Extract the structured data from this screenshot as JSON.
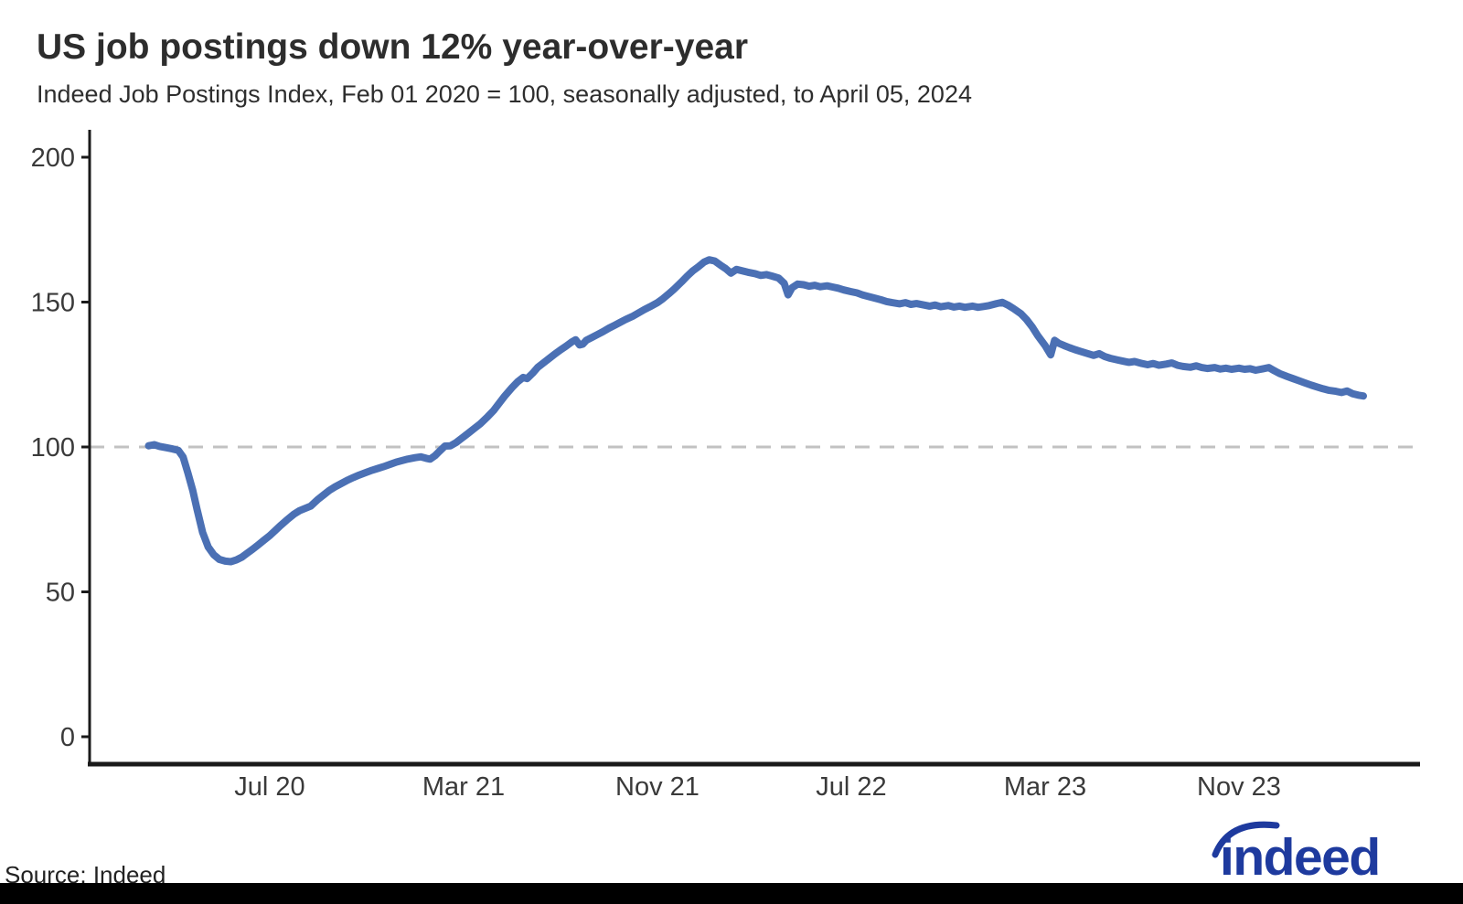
{
  "header": {
    "title": "US job postings down 12% year-over-year",
    "subtitle": "Indeed Job Postings Index, Feb 01 2020 = 100, seasonally adjusted, to April 05, 2024"
  },
  "footer": {
    "source_label": "Source: Indeed",
    "logo_text": "indeed"
  },
  "colors": {
    "line": "#4B70B4",
    "baseline_dash": "#c2c2c2",
    "axis": "#1a1a1a",
    "tick_text": "#3a3a3a",
    "logo_blue": "#1E3A9E",
    "footer_bar": "#000000"
  },
  "chart_data": {
    "type": "line",
    "title": "US job postings down 12% year-over-year",
    "subtitle": "Indeed Job Postings Index, Feb 01 2020 = 100, seasonally adjusted, to April 05, 2024",
    "xlabel": "",
    "ylabel": "",
    "ylim": [
      0,
      200
    ],
    "yticks": [
      0,
      50,
      100,
      150,
      200
    ],
    "baseline_value": 100,
    "grid": false,
    "legend": "none",
    "xticks": [
      {
        "label": "Jul 20",
        "months_from_feb2020": 5
      },
      {
        "label": "Mar 21",
        "months_from_feb2020": 13
      },
      {
        "label": "Nov 21",
        "months_from_feb2020": 21
      },
      {
        "label": "Jul 22",
        "months_from_feb2020": 29
      },
      {
        "label": "Mar 23",
        "months_from_feb2020": 37
      },
      {
        "label": "Nov 23",
        "months_from_feb2020": 45
      }
    ],
    "x_range": [
      "2020-02-01",
      "2024-04-05"
    ],
    "series": [
      {
        "name": "Indeed Job Postings Index (US, seasonally adjusted)",
        "x": [
          "2020-02-01",
          "2020-02-08",
          "2020-02-15",
          "2020-02-22",
          "2020-03-01",
          "2020-03-08",
          "2020-03-14",
          "2020-03-20",
          "2020-03-26",
          "2020-04-01",
          "2020-04-08",
          "2020-04-15",
          "2020-04-22",
          "2020-04-29",
          "2020-05-06",
          "2020-05-13",
          "2020-05-20",
          "2020-05-27",
          "2020-06-03",
          "2020-06-10",
          "2020-06-17",
          "2020-06-24",
          "2020-07-01",
          "2020-07-08",
          "2020-07-15",
          "2020-07-22",
          "2020-08-01",
          "2020-08-08",
          "2020-08-15",
          "2020-08-22",
          "2020-09-01",
          "2020-09-08",
          "2020-09-15",
          "2020-09-22",
          "2020-10-01",
          "2020-10-08",
          "2020-10-15",
          "2020-10-22",
          "2020-11-01",
          "2020-11-08",
          "2020-11-15",
          "2020-11-22",
          "2020-12-01",
          "2020-12-08",
          "2020-12-15",
          "2020-12-22",
          "2021-01-01",
          "2021-01-08",
          "2021-01-15",
          "2021-01-20",
          "2021-01-26",
          "2021-02-01",
          "2021-02-08",
          "2021-02-15",
          "2021-02-22",
          "2021-03-01",
          "2021-03-08",
          "2021-03-15",
          "2021-03-22",
          "2021-04-01",
          "2021-04-08",
          "2021-04-15",
          "2021-04-22",
          "2021-05-01",
          "2021-05-08",
          "2021-05-15",
          "2021-05-20",
          "2021-05-27",
          "2021-06-03",
          "2021-06-10",
          "2021-06-17",
          "2021-06-24",
          "2021-07-01",
          "2021-07-08",
          "2021-07-15",
          "2021-07-20",
          "2021-07-25",
          "2021-07-29",
          "2021-08-03",
          "2021-08-10",
          "2021-08-17",
          "2021-08-24",
          "2021-09-01",
          "2021-09-08",
          "2021-09-15",
          "2021-09-22",
          "2021-10-01",
          "2021-10-08",
          "2021-10-15",
          "2021-10-22",
          "2021-11-01",
          "2021-11-08",
          "2021-11-15",
          "2021-11-22",
          "2021-12-01",
          "2021-12-08",
          "2021-12-15",
          "2021-12-22",
          "2021-12-29",
          "2022-01-05",
          "2022-01-12",
          "2022-01-19",
          "2022-01-26",
          "2022-02-02",
          "2022-02-09",
          "2022-02-16",
          "2022-02-23",
          "2022-03-02",
          "2022-03-09",
          "2022-03-16",
          "2022-03-23",
          "2022-04-01",
          "2022-04-08",
          "2022-04-13",
          "2022-04-18",
          "2022-04-25",
          "2022-05-02",
          "2022-05-09",
          "2022-05-16",
          "2022-05-23",
          "2022-06-01",
          "2022-06-08",
          "2022-06-15",
          "2022-06-22",
          "2022-07-01",
          "2022-07-08",
          "2022-07-15",
          "2022-07-22",
          "2022-08-01",
          "2022-08-08",
          "2022-08-15",
          "2022-08-22",
          "2022-09-01",
          "2022-09-08",
          "2022-09-15",
          "2022-09-22",
          "2022-10-01",
          "2022-10-08",
          "2022-10-15",
          "2022-10-22",
          "2022-11-01",
          "2022-11-08",
          "2022-11-15",
          "2022-11-22",
          "2022-12-01",
          "2022-12-08",
          "2022-12-15",
          "2022-12-22",
          "2023-01-01",
          "2023-01-08",
          "2023-01-15",
          "2023-01-22",
          "2023-02-01",
          "2023-02-08",
          "2023-02-15",
          "2023-02-22",
          "2023-03-01",
          "2023-03-08",
          "2023-03-13",
          "2023-03-18",
          "2023-03-25",
          "2023-04-01",
          "2023-04-08",
          "2023-04-15",
          "2023-04-22",
          "2023-05-01",
          "2023-05-08",
          "2023-05-15",
          "2023-05-22",
          "2023-06-01",
          "2023-06-08",
          "2023-06-15",
          "2023-06-22",
          "2023-07-01",
          "2023-07-08",
          "2023-07-15",
          "2023-07-22",
          "2023-08-01",
          "2023-08-08",
          "2023-08-15",
          "2023-08-22",
          "2023-09-01",
          "2023-09-08",
          "2023-09-15",
          "2023-09-22",
          "2023-10-01",
          "2023-10-08",
          "2023-10-15",
          "2023-10-22",
          "2023-11-01",
          "2023-11-08",
          "2023-11-15",
          "2023-11-22",
          "2023-12-01",
          "2023-12-08",
          "2023-12-15",
          "2023-12-22",
          "2024-01-01",
          "2024-01-08",
          "2024-01-15",
          "2024-01-22",
          "2024-02-01",
          "2024-02-08",
          "2024-02-15",
          "2024-02-22",
          "2024-03-01",
          "2024-03-08",
          "2024-03-15",
          "2024-03-22",
          "2024-03-29",
          "2024-04-05"
        ],
        "y": [
          100.4,
          100.8,
          100.2,
          99.8,
          99.3,
          98.8,
          96.5,
          91,
          85,
          78.5,
          70.5,
          65.5,
          62.8,
          61.2,
          60.6,
          60.4,
          61.0,
          62.0,
          63.3,
          64.7,
          66.2,
          67.8,
          69.4,
          71.2,
          73.0,
          74.7,
          76.8,
          78.0,
          78.8,
          79.6,
          82.0,
          83.5,
          85.0,
          86.2,
          87.6,
          88.6,
          89.5,
          90.3,
          91.3,
          92.0,
          92.6,
          93.2,
          94.1,
          94.8,
          95.3,
          95.8,
          96.3,
          96.6,
          96.1,
          95.8,
          97.0,
          98.5,
          100.3,
          100.4,
          101.5,
          103.5,
          105.0,
          106.5,
          108.0,
          110.5,
          112.5,
          115.0,
          117.5,
          120.5,
          122.5,
          124.0,
          123.6,
          125.5,
          127.5,
          129.0,
          130.5,
          132.0,
          133.5,
          134.8,
          136.2,
          137.0,
          135.2,
          135.5,
          136.8,
          137.8,
          138.8,
          139.8,
          141.0,
          142.0,
          143.0,
          144.0,
          145.2,
          146.3,
          147.4,
          148.4,
          149.8,
          151.2,
          152.8,
          154.5,
          157.0,
          159.0,
          160.8,
          162.2,
          163.8,
          164.6,
          164.2,
          162.8,
          161.5,
          160.0,
          161.3,
          160.8,
          160.3,
          159.8,
          159.2,
          159.5,
          159.0,
          158.3,
          156.5,
          152.5,
          155.0,
          156.2,
          156.0,
          155.5,
          155.8,
          155.3,
          155.6,
          155.2,
          154.8,
          154.2,
          153.6,
          153.2,
          152.5,
          152.0,
          151.3,
          150.8,
          150.2,
          149.8,
          149.4,
          149.8,
          149.2,
          149.5,
          149.0,
          148.6,
          149.0,
          148.4,
          148.8,
          148.3,
          148.6,
          148.2,
          148.6,
          148.2,
          148.5,
          148.8,
          149.5,
          149.9,
          149.0,
          147.8,
          146.0,
          144.0,
          141.5,
          138.5,
          135.0,
          131.8,
          136.8,
          135.8,
          135.0,
          134.3,
          133.6,
          133.0,
          132.4,
          131.6,
          132.2,
          131.2,
          130.6,
          130.0,
          129.6,
          129.2,
          129.5,
          128.8,
          128.4,
          128.8,
          128.2,
          128.6,
          129.0,
          128.2,
          127.8,
          127.5,
          128.0,
          127.4,
          127.1,
          127.4,
          126.9,
          127.2,
          126.8,
          127.2,
          126.8,
          127.0,
          126.5,
          127.0,
          127.4,
          126.3,
          125.3,
          124.3,
          123.6,
          122.9,
          122.2,
          121.3,
          120.7,
          120.1,
          119.6,
          119.2,
          118.8,
          119.3,
          118.4,
          117.9,
          117.6
        ]
      }
    ]
  }
}
